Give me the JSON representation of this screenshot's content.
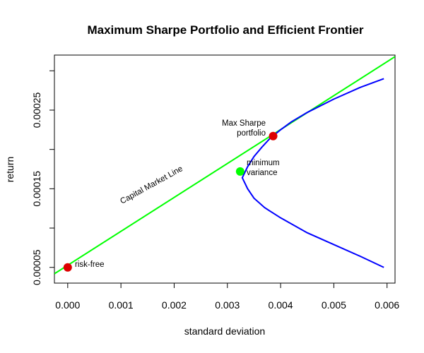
{
  "chart_data": {
    "type": "line",
    "title": "Maximum Sharpe Portfolio and Efficient Frontier",
    "xlabel": "standard deviation",
    "ylabel": "return",
    "xlim": [
      -0.00025,
      0.00615
    ],
    "ylim": [
      3e-05,
      0.00032
    ],
    "x_ticks": [
      0,
      0.001,
      0.002,
      0.003,
      0.004,
      0.005,
      0.006
    ],
    "x_tick_labels": [
      "0.000",
      "0.001",
      "0.002",
      "0.003",
      "0.004",
      "0.005",
      "0.006"
    ],
    "y_ticks": [
      5e-05,
      0.0001,
      0.00015,
      0.0002,
      0.00025,
      0.0003
    ],
    "y_tick_labels": [
      "0.00005",
      "",
      "0.00015",
      "",
      "0.00025",
      ""
    ],
    "grid": false,
    "series": [
      {
        "type": "line",
        "color": "#0000ff",
        "points": [
          [
            0.00594,
            0.00029
          ],
          [
            0.0055,
            0.000279
          ],
          [
            0.005,
            0.000264
          ],
          [
            0.0045,
            0.000247
          ],
          [
            0.0042,
            0.000235
          ],
          [
            0.004,
            0.000225
          ],
          [
            0.0038,
            0.000214
          ],
          [
            0.00365,
            0.000203
          ],
          [
            0.0035,
            0.000191
          ],
          [
            0.00338,
            0.000178
          ],
          [
            0.00328,
            0.000164
          ],
          [
            0.00338,
            0.00015
          ],
          [
            0.0035,
            0.000138
          ],
          [
            0.0037,
            0.000126
          ],
          [
            0.004,
            0.000113
          ],
          [
            0.0045,
            9.4e-05
          ],
          [
            0.005,
            7.9e-05
          ],
          [
            0.0055,
            6.4e-05
          ],
          [
            0.00594,
            5e-05
          ]
        ]
      },
      {
        "name": "Capital Market Line",
        "type": "line",
        "color": "#00ff00",
        "points": [
          [
            -0.00025,
            4.19e-05
          ],
          [
            0.00615,
            0.000318
          ]
        ]
      }
    ],
    "points": [
      {
        "label": "risk-free",
        "x": 0.0,
        "y": 5e-05,
        "color": "#dd0000"
      },
      {
        "label": "Max Sharpe portfolio",
        "x": 0.00386,
        "y": 0.000217,
        "color": "#dd0000"
      },
      {
        "label": "minimum variance",
        "x": 0.00324,
        "y": 0.000172,
        "color": "#00ff00"
      }
    ],
    "annotations": {
      "risk_free": "risk-free",
      "max_sharpe_line1": "Max Sharpe",
      "max_sharpe_line2": "portfolio",
      "min_var_line1": "minimum",
      "min_var_line2": "variance",
      "cml": "Capital Market Line"
    }
  }
}
